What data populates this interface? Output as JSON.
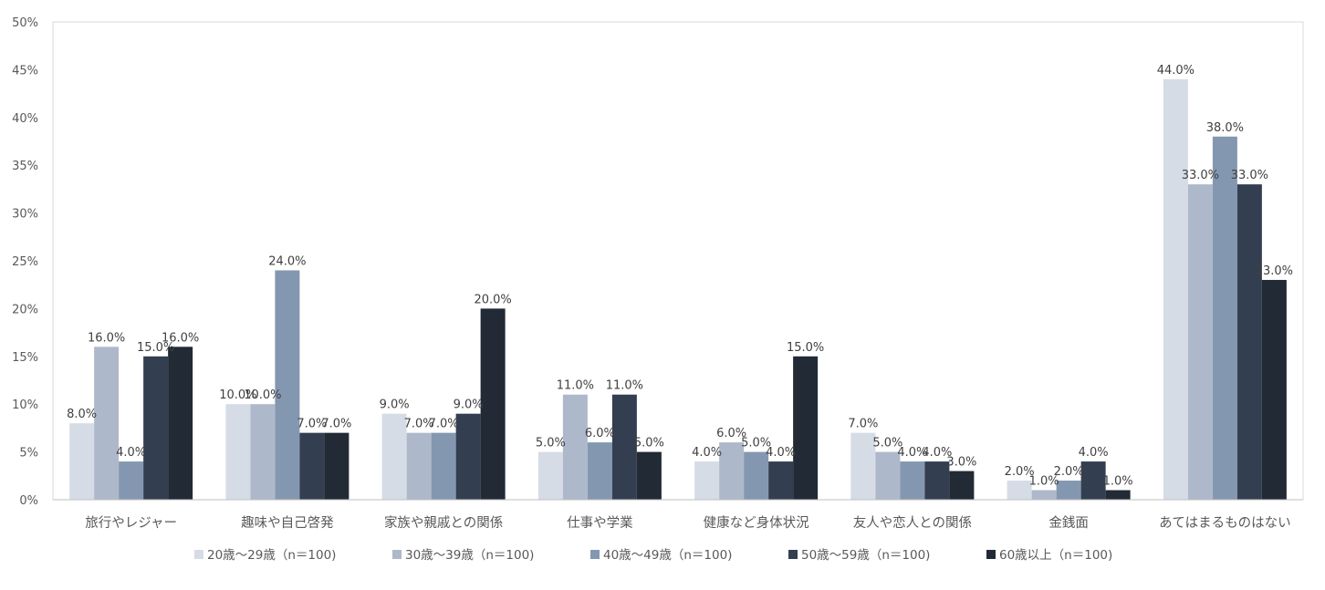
{
  "chart_data": {
    "type": "bar",
    "title": "",
    "xlabel": "",
    "ylabel": "",
    "ylim": [
      0,
      50
    ],
    "yticks": [
      "0%",
      "5%",
      "10%",
      "15%",
      "20%",
      "25%",
      "30%",
      "35%",
      "40%",
      "45%",
      "50%"
    ],
    "grid": false,
    "legend_position": "bottom",
    "categories": [
      "旅行やレジャー",
      "趣味や自己啓発",
      "家族や親戚との関係",
      "仕事や学業",
      "健康など身体状況",
      "友人や恋人との関係",
      "金銭面",
      "あてはまるものはない"
    ],
    "series": [
      {
        "name": "20歳～29歳（n＝100)",
        "color": "#d6dce5",
        "values": [
          8,
          10,
          9,
          5,
          4,
          7,
          2,
          44
        ],
        "labels": [
          "8.0%",
          "10.0%",
          "9.0%",
          "5.0%",
          "4.0%",
          "7.0%",
          "2.0%",
          "44.0%"
        ]
      },
      {
        "name": "30歳～39歳（n＝100)",
        "color": "#adb9ca",
        "values": [
          16,
          10,
          7,
          11,
          6,
          5,
          1,
          33
        ],
        "labels": [
          "16.0%",
          "10.0%",
          "7.0%",
          "11.0%",
          "6.0%",
          "5.0%",
          "1.0%",
          "33.0%"
        ]
      },
      {
        "name": "40歳～49歳（n＝100)",
        "color": "#8497b0",
        "values": [
          4,
          24,
          7,
          6,
          5,
          4,
          2,
          38
        ],
        "labels": [
          "4.0%",
          "24.0%",
          "7.0%",
          "6.0%",
          "5.0%",
          "4.0%",
          "2.0%",
          "38.0%"
        ]
      },
      {
        "name": "50歳～59歳（n＝100)",
        "color": "#333f50",
        "values": [
          15,
          7,
          9,
          11,
          4,
          4,
          4,
          33
        ],
        "labels": [
          "15.0%",
          "7.0%",
          "9.0%",
          "11.0%",
          "4.0%",
          "4.0%",
          "4.0%",
          "33.0%"
        ]
      },
      {
        "name": "60歳以上（n＝100)",
        "color": "#222a35",
        "values": [
          16,
          7,
          20,
          5,
          15,
          3,
          1,
          23
        ],
        "labels": [
          "16.0%",
          "7.0%",
          "20.0%",
          "5.0%",
          "15.0%",
          "3.0%",
          "1.0%",
          "23.0%"
        ]
      }
    ]
  }
}
